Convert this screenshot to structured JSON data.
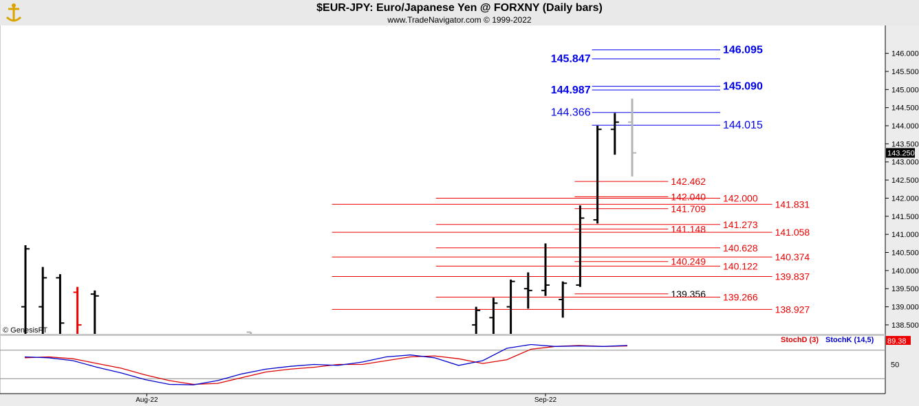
{
  "header": {
    "title": "$EUR-JPY:  Euro/Japanese Yen @ FORXNY  (Daily bars)",
    "subtitle": "www.TradeNavigator.com © 1999-2022"
  },
  "watermark": "© GenesisFT",
  "colors": {
    "blue": "#0000ee",
    "red": "#ee0000",
    "black": "#000000",
    "gray": "#b4b4b4",
    "stoch_d": "#dd0000",
    "stoch_k": "#0000cc"
  },
  "chart_data": {
    "type": "ohlc",
    "price_axis": {
      "ylim": [
        138.1,
        146.6
      ],
      "ticks": [
        "146.000",
        "145.500",
        "145.000",
        "144.500",
        "144.000",
        "143.500",
        "143.000",
        "142.500",
        "142.000",
        "141.500",
        "141.000",
        "140.500",
        "140.000",
        "139.500",
        "139.000",
        "138.500"
      ]
    },
    "current_price": "143.250",
    "x_labels": [
      {
        "label": "Aug-22",
        "bar": 7
      },
      {
        "label": "Sep-22",
        "bar": 30
      }
    ],
    "bars": [
      {
        "i": 0,
        "o": 139.0,
        "h": 140.7,
        "l": 138.0,
        "c": 140.6,
        "color": "black"
      },
      {
        "i": 1,
        "o": 139.0,
        "h": 140.1,
        "l": 138.0,
        "c": 139.8,
        "color": "black"
      },
      {
        "i": 2,
        "o": 139.8,
        "h": 139.9,
        "l": 138.0,
        "c": 138.55,
        "color": "black"
      },
      {
        "i": 3,
        "o": 139.4,
        "h": 139.55,
        "l": 138.0,
        "c": 138.5,
        "color": "red"
      },
      {
        "i": 4,
        "o": 139.35,
        "h": 139.45,
        "l": 138.0,
        "c": 139.3,
        "color": "black"
      },
      {
        "i": 12,
        "o": 138.2,
        "h": 138.2,
        "l": 138.0,
        "c": 138.15,
        "color": "black"
      },
      {
        "i": 13,
        "o": 138.3,
        "h": 138.3,
        "l": 138.0,
        "c": 138.25,
        "color": "gray"
      },
      {
        "i": 26,
        "o": 138.5,
        "h": 139.0,
        "l": 138.0,
        "c": 138.9,
        "color": "black"
      },
      {
        "i": 27,
        "o": 138.7,
        "h": 139.25,
        "l": 138.0,
        "c": 139.1,
        "color": "black"
      },
      {
        "i": 28,
        "o": 139.0,
        "h": 139.75,
        "l": 138.0,
        "c": 139.7,
        "color": "black"
      },
      {
        "i": 29,
        "o": 139.5,
        "h": 139.95,
        "l": 138.95,
        "c": 139.45,
        "color": "black"
      },
      {
        "i": 30,
        "o": 139.45,
        "h": 140.75,
        "l": 139.3,
        "c": 139.6,
        "color": "black"
      },
      {
        "i": 31,
        "o": 139.2,
        "h": 139.7,
        "l": 138.7,
        "c": 139.65,
        "color": "black"
      },
      {
        "i": 32,
        "o": 139.6,
        "h": 141.8,
        "l": 139.55,
        "c": 141.45,
        "color": "black"
      },
      {
        "i": 33,
        "o": 141.4,
        "h": 144.0,
        "l": 141.3,
        "c": 143.9,
        "color": "black"
      },
      {
        "i": 34,
        "o": 143.9,
        "h": 144.35,
        "l": 143.2,
        "c": 144.1,
        "color": "black"
      },
      {
        "i": 35,
        "o": 144.1,
        "h": 144.75,
        "l": 142.6,
        "c": 143.25,
        "color": "gray"
      }
    ],
    "fib_levels": [
      {
        "value": 146.095,
        "label": "146.095",
        "color": "blue",
        "bold": true,
        "x1": 33,
        "x2": 40,
        "label_side": "right"
      },
      {
        "value": 145.847,
        "label": "145.847",
        "color": "blue",
        "bold": true,
        "x1": 33,
        "x2": 40,
        "label_side": "left"
      },
      {
        "value": 145.09,
        "label": "145.090",
        "color": "blue",
        "bold": true,
        "x1": 33,
        "x2": 40,
        "label_side": "right"
      },
      {
        "value": 144.987,
        "label": "144.987",
        "color": "blue",
        "bold": true,
        "x1": 33,
        "x2": 40,
        "label_side": "left"
      },
      {
        "value": 144.366,
        "label": "144.366",
        "color": "blue",
        "bold": false,
        "x1": 33,
        "x2": 40,
        "label_side": "left"
      },
      {
        "value": 144.015,
        "label": "144.015",
        "color": "blue",
        "bold": false,
        "x1": 33,
        "x2": 40,
        "label_side": "right"
      },
      {
        "value": 142.462,
        "label": "142.462",
        "color": "red",
        "bold": false,
        "x1": 32,
        "x2": 37,
        "label_side": "right"
      },
      {
        "value": 142.04,
        "label": "142.040",
        "color": "red",
        "bold": false,
        "x1": 32,
        "x2": 37,
        "label_side": "right"
      },
      {
        "value": 142.0,
        "label": "142.000",
        "color": "red",
        "bold": false,
        "x1": 24,
        "x2": 40,
        "label_side": "right"
      },
      {
        "value": 141.831,
        "label": "141.831",
        "color": "red",
        "bold": false,
        "x1": 18,
        "x2": 43,
        "label_side": "right"
      },
      {
        "value": 141.709,
        "label": "141.709",
        "color": "red",
        "bold": false,
        "x1": 32,
        "x2": 37,
        "label_side": "right"
      },
      {
        "value": 141.273,
        "label": "141.273",
        "color": "red",
        "bold": false,
        "x1": 24,
        "x2": 40,
        "label_side": "right"
      },
      {
        "value": 141.148,
        "label": "141.148",
        "color": "red",
        "bold": false,
        "x1": 32,
        "x2": 37,
        "label_side": "right"
      },
      {
        "value": 141.058,
        "label": "141.058",
        "color": "red",
        "bold": false,
        "x1": 18,
        "x2": 43,
        "label_side": "right"
      },
      {
        "value": 140.628,
        "label": "140.628",
        "color": "red",
        "bold": false,
        "x1": 24,
        "x2": 40,
        "label_side": "right"
      },
      {
        "value": 140.374,
        "label": "140.374",
        "color": "red",
        "bold": false,
        "x1": 18,
        "x2": 43,
        "label_side": "right"
      },
      {
        "value": 140.249,
        "label": "140.249",
        "color": "red",
        "bold": false,
        "x1": 32,
        "x2": 37,
        "label_side": "right"
      },
      {
        "value": 140.122,
        "label": "140.122",
        "color": "red",
        "bold": false,
        "x1": 24,
        "x2": 40,
        "label_side": "right"
      },
      {
        "value": 139.837,
        "label": "139.837",
        "color": "red",
        "bold": false,
        "x1": 18,
        "x2": 43,
        "label_side": "right"
      },
      {
        "value": 139.356,
        "label": "139.356",
        "color": "black",
        "bold": false,
        "x1": 32,
        "x2": 37,
        "label_side": "right"
      },
      {
        "value": 139.266,
        "label": "139.266",
        "color": "red",
        "bold": false,
        "x1": 24,
        "x2": 40,
        "label_side": "right"
      },
      {
        "value": 138.927,
        "label": "138.927",
        "color": "red",
        "bold": false,
        "x1": 18,
        "x2": 43,
        "label_side": "right"
      }
    ],
    "stochastic": {
      "ylim": [
        0,
        100
      ],
      "ticks": [
        "50"
      ],
      "current": "89.38",
      "legend": [
        "StochD (3)",
        "StochK (14,5)"
      ],
      "series": [
        {
          "name": "StochD (3)",
          "color": "stoch_d",
          "values": [
            64,
            66,
            62,
            52,
            42,
            28,
            16,
            8,
            10,
            22,
            34,
            40,
            44,
            50,
            50,
            58,
            66,
            68,
            62,
            52,
            60,
            82,
            88,
            90,
            88,
            89
          ]
        },
        {
          "name": "StochK (14,5)",
          "color": "stoch_k",
          "values": [
            66,
            64,
            58,
            44,
            32,
            18,
            8,
            7,
            16,
            30,
            40,
            46,
            50,
            48,
            55,
            66,
            70,
            64,
            48,
            58,
            84,
            92,
            88,
            89,
            88,
            90
          ]
        }
      ]
    }
  }
}
